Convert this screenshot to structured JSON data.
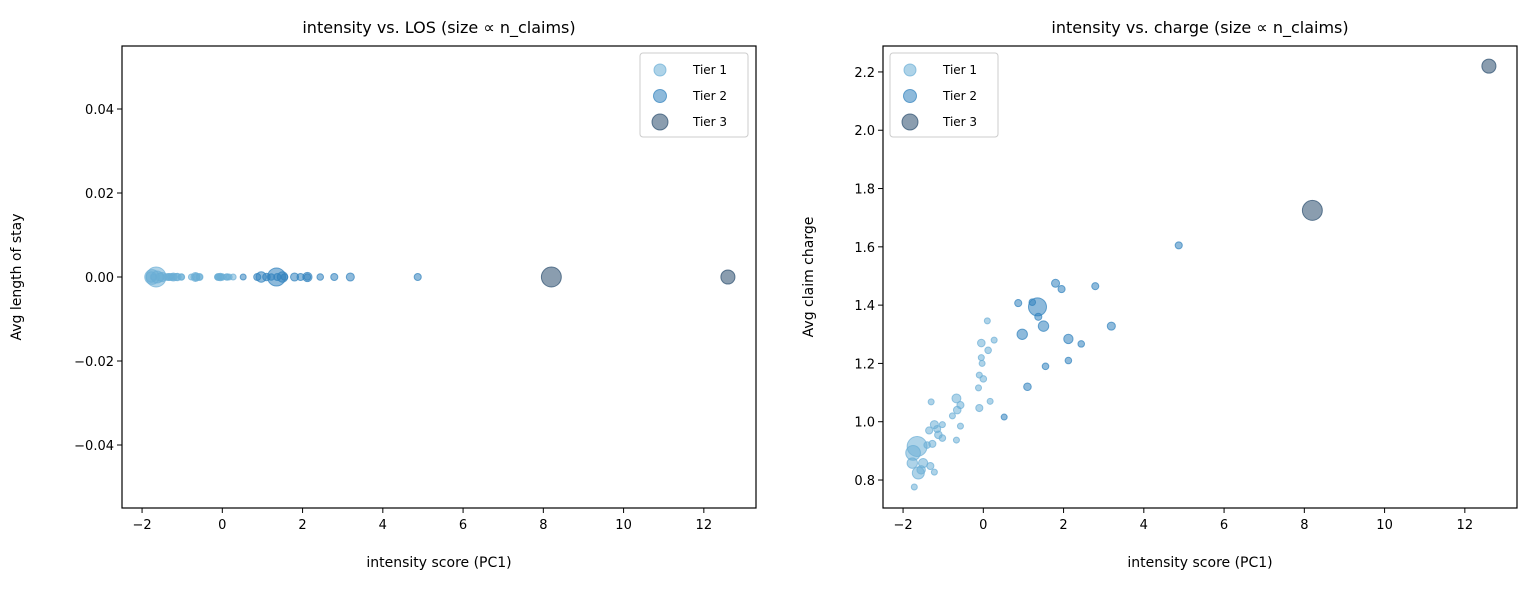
{
  "colors": {
    "tier1": "#6baed6",
    "tier2": "#3182bd",
    "tier3": "#2a4d6e"
  },
  "legend": {
    "items": [
      "Tier 1",
      "Tier 2",
      "Tier 3"
    ]
  },
  "points": [
    [
      12.6,
      2.22,
      3,
      55
    ],
    [
      8.2,
      1.725,
      3,
      110
    ],
    [
      4.87,
      1.605,
      2,
      14
    ],
    [
      2.79,
      1.465,
      2,
      14
    ],
    [
      1.8,
      1.475,
      2,
      18
    ],
    [
      1.95,
      1.455,
      2,
      14
    ],
    [
      1.35,
      1.394,
      2,
      90
    ],
    [
      0.87,
      1.407,
      2,
      14
    ],
    [
      1.22,
      1.41,
      2,
      12
    ],
    [
      1.37,
      1.36,
      2,
      14
    ],
    [
      1.5,
      1.328,
      2,
      30
    ],
    [
      0.97,
      1.3,
      2,
      30
    ],
    [
      2.12,
      1.284,
      2,
      24
    ],
    [
      2.44,
      1.267,
      2,
      12
    ],
    [
      3.19,
      1.328,
      2,
      18
    ],
    [
      1.55,
      1.19,
      2,
      12
    ],
    [
      2.12,
      1.21,
      2,
      12
    ],
    [
      1.1,
      1.12,
      2,
      16
    ],
    [
      0.52,
      1.016,
      2,
      10
    ],
    [
      0.1,
      1.346,
      1,
      10
    ],
    [
      -0.05,
      1.27,
      1,
      16
    ],
    [
      0.27,
      1.28,
      1,
      10
    ],
    [
      0.12,
      1.245,
      1,
      12
    ],
    [
      -0.05,
      1.22,
      1,
      10
    ],
    [
      -0.03,
      1.2,
      1,
      10
    ],
    [
      -0.1,
      1.16,
      1,
      10
    ],
    [
      0.0,
      1.147,
      1,
      12
    ],
    [
      -0.12,
      1.116,
      1,
      10
    ],
    [
      0.17,
      1.07,
      1,
      10
    ],
    [
      -0.1,
      1.047,
      1,
      14
    ],
    [
      -0.67,
      1.08,
      1,
      22
    ],
    [
      -0.57,
      1.057,
      1,
      14
    ],
    [
      -0.65,
      1.04,
      1,
      16
    ],
    [
      -0.77,
      1.02,
      1,
      10
    ],
    [
      -1.3,
      1.068,
      1,
      10
    ],
    [
      -0.57,
      0.985,
      1,
      10
    ],
    [
      -0.67,
      0.937,
      1,
      10
    ],
    [
      -1.22,
      0.99,
      1,
      18
    ],
    [
      -1.35,
      0.97,
      1,
      14
    ],
    [
      -1.02,
      0.99,
      1,
      10
    ],
    [
      -1.12,
      0.955,
      1,
      16
    ],
    [
      -1.02,
      0.944,
      1,
      12
    ],
    [
      -1.27,
      0.924,
      1,
      14
    ],
    [
      -1.65,
      0.915,
      1,
      110
    ],
    [
      -1.75,
      0.893,
      1,
      60
    ],
    [
      -1.77,
      0.858,
      1,
      30
    ],
    [
      -1.5,
      0.858,
      1,
      24
    ],
    [
      -1.32,
      0.848,
      1,
      14
    ],
    [
      -1.62,
      0.824,
      1,
      40
    ],
    [
      -1.22,
      0.827,
      1,
      10
    ],
    [
      -1.72,
      0.776,
      1,
      10
    ],
    [
      -1.4,
      0.92,
      1,
      12
    ],
    [
      -1.15,
      0.975,
      1,
      14
    ],
    [
      -1.55,
      0.835,
      1,
      20
    ]
  ],
  "chart_data": [
    {
      "type": "scatter",
      "title": "intensity vs. LOS (size ∝ n_claims)",
      "xlabel": "intensity score (PC1)",
      "ylabel": "Avg length of stay",
      "xlim": [
        -2.5,
        13.3
      ],
      "ylim": [
        -0.055,
        0.055
      ],
      "xticks": [
        "−2",
        "0",
        "2",
        "4",
        "6",
        "8",
        "10",
        "12"
      ],
      "xtick_values": [
        -2,
        0,
        2,
        4,
        6,
        8,
        10,
        12
      ],
      "yticks": [
        "−0.04",
        "−0.02",
        "0.00",
        "0.02",
        "0.04"
      ],
      "ytick_values": [
        -0.04,
        -0.02,
        0,
        0.02,
        0.04
      ],
      "y_field": "constant_zero",
      "legend_position": "upper right",
      "grid": false
    },
    {
      "type": "scatter",
      "title": "intensity vs. charge (size ∝ n_claims)",
      "xlabel": "intensity score (PC1)",
      "ylabel": "Avg claim charge",
      "xlim": [
        -2.5,
        13.3
      ],
      "ylim": [
        0.704,
        2.289
      ],
      "xticks": [
        "−2",
        "0",
        "2",
        "4",
        "6",
        "8",
        "10",
        "12"
      ],
      "xtick_values": [
        -2,
        0,
        2,
        4,
        6,
        8,
        10,
        12
      ],
      "yticks": [
        "0.8",
        "1.0",
        "1.2",
        "1.4",
        "1.6",
        "1.8",
        "2.0",
        "2.2"
      ],
      "ytick_values": [
        0.8,
        1.0,
        1.2,
        1.4,
        1.6,
        1.8,
        2.0,
        2.2
      ],
      "y_field": "charge",
      "legend_position": "upper left",
      "grid": false
    }
  ]
}
